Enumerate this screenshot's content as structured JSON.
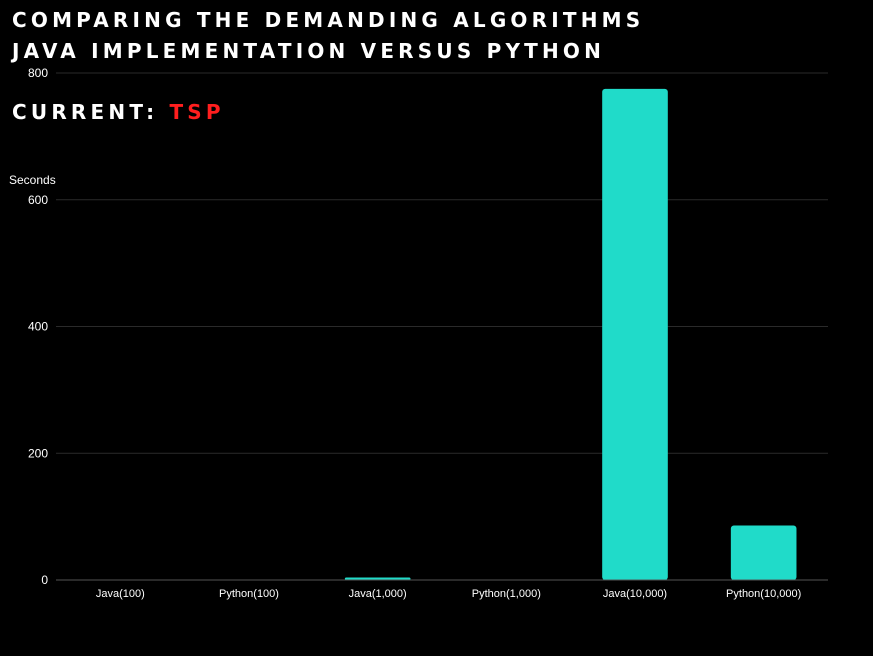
{
  "header": {
    "title_line1": "COMPARING THE DEMANDING ALGORITHMS",
    "title_line2": "JAVA IMPLEMENTATION VERSUS PYTHON",
    "current_label": "CURRENT:",
    "current_value": "TSP"
  },
  "colors": {
    "background": "#000000",
    "bar": "#20dbc9",
    "grid": "#2a2a2a",
    "text": "#ffffff",
    "highlight": "#ff1e1e"
  },
  "chart_data": {
    "type": "bar",
    "title": "",
    "xlabel": "",
    "ylabel": "Seconds",
    "categories": [
      "Java(100)",
      "Python(100)",
      "Java(1,000)",
      "Python(1,000)",
      "Java(10,000)",
      "Python(10,000)"
    ],
    "values": [
      0.3,
      0.1,
      4,
      0.6,
      775,
      86
    ],
    "ylim": [
      0,
      800
    ],
    "yticks": [
      0,
      200,
      400,
      600,
      800
    ],
    "grid": true,
    "legend": "none"
  }
}
